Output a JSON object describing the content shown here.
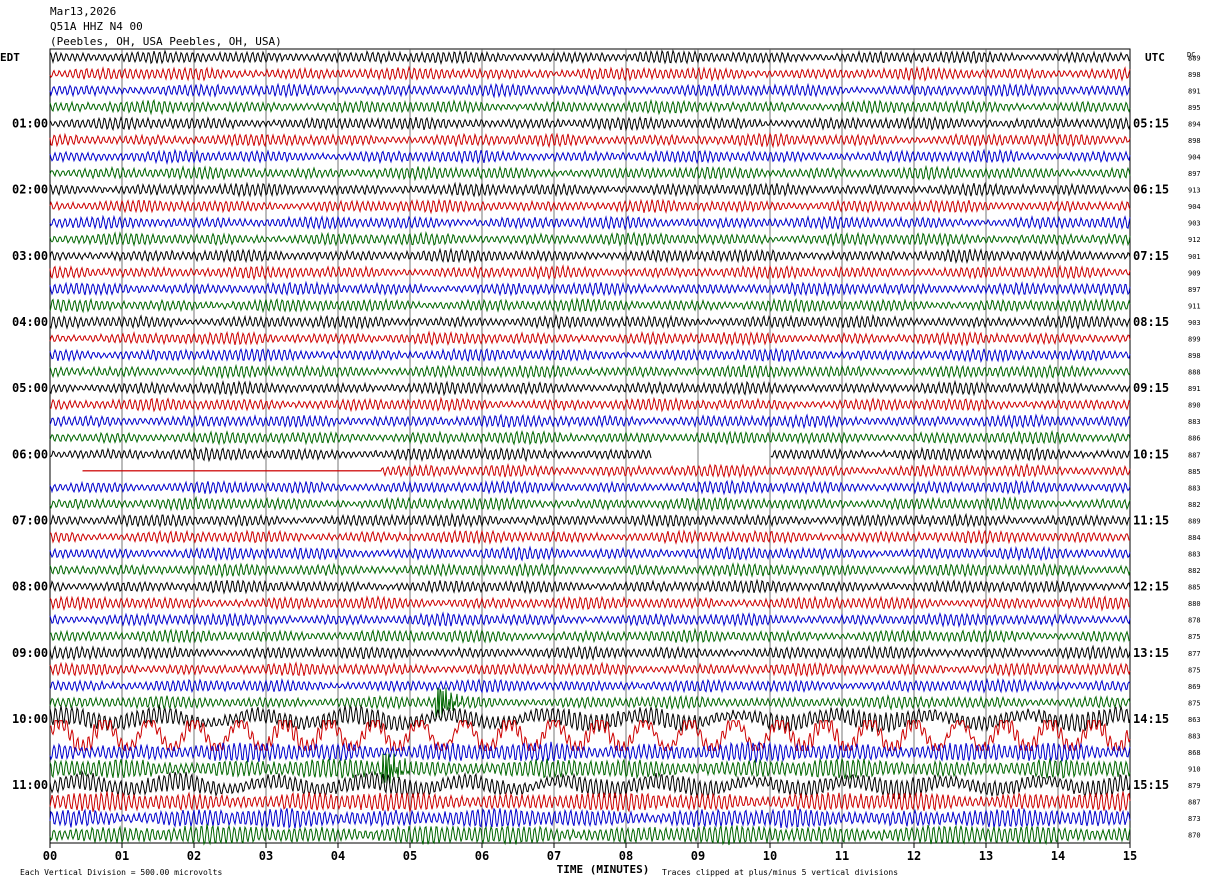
{
  "header": {
    "date": "Mar13,2026",
    "station": "Q51A HHZ N4 00",
    "location": "(Peebles, OH, USA Peebles, OH, USA)"
  },
  "left_axis_label": "EDT",
  "right_axis_label": "UTC",
  "dc_label": "DC",
  "footer": {
    "scale_note": "Each Vertical Division =  500.00 microvolts",
    "x_axis_title": "TIME (MINUTES)",
    "clip_note": "Traces clipped at plus/minus 5 vertical divisions"
  },
  "chart_data": {
    "type": "line",
    "title": "",
    "xlabel": "TIME (MINUTES)",
    "xlim": [
      0,
      15
    ],
    "x_ticks": [
      "00",
      "01",
      "02",
      "03",
      "04",
      "05",
      "06",
      "07",
      "08",
      "09",
      "10",
      "11",
      "12",
      "13",
      "14",
      "15"
    ],
    "rows_per_hour": 4,
    "row_colors": [
      "#000000",
      "#cc0000",
      "#0000cc",
      "#006600"
    ],
    "edt_hour_labels": [
      "01:00",
      "02:00",
      "03:00",
      "04:00",
      "05:00",
      "06:00",
      "07:00",
      "08:00",
      "09:00",
      "10:00",
      "11:00"
    ],
    "utc_hour_labels": [
      "05:15",
      "06:15",
      "07:15",
      "08:15",
      "09:15",
      "10:15",
      "11:15",
      "12:15",
      "13:15",
      "14:15",
      "15:15"
    ],
    "edt_label_rows": [
      4,
      8,
      12,
      16,
      20,
      24,
      28,
      32,
      36,
      40,
      44
    ],
    "dc_values": [
      "889",
      "898",
      "891",
      "895",
      "894",
      "898",
      "904",
      "897",
      "913",
      "904",
      "903",
      "912",
      "901",
      "909",
      "897",
      "911",
      "903",
      "899",
      "898",
      "888",
      "891",
      "890",
      "883",
      "886",
      "887",
      "885",
      "883",
      "882",
      "889",
      "884",
      "883",
      "882",
      "885",
      "880",
      "878",
      "875",
      "877",
      "875",
      "869",
      "875",
      "863",
      "883",
      "868",
      "910",
      "879",
      "887",
      "873",
      "870"
    ],
    "gap_segments": [
      {
        "row": 24,
        "start_min": 8.35,
        "end_min": 10.0
      },
      {
        "row": 25,
        "start_min": 0.0,
        "end_min": 0.45
      }
    ],
    "flat_segments": [
      {
        "row": 25,
        "start_min": 0.45,
        "end_min": 4.6
      }
    ],
    "events": [
      {
        "row": 39,
        "time_min": 5.4,
        "label": ""
      },
      {
        "row": 43,
        "time_min": 4.65,
        "label": ""
      }
    ],
    "clip_divisions": 5,
    "microvolts_per_division": 500.0
  }
}
